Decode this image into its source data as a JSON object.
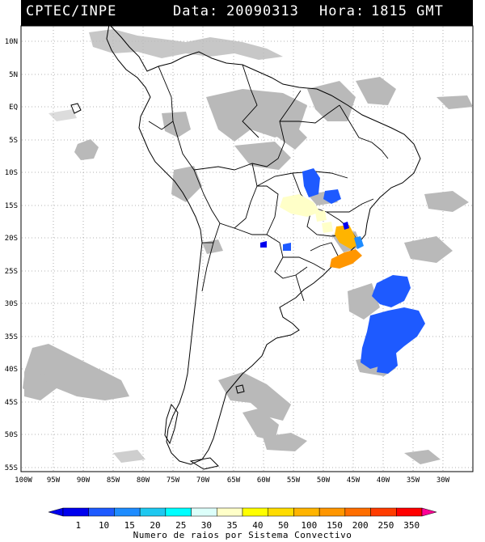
{
  "header": {
    "source": "CPTEC/INPE",
    "date_label": "Data:",
    "date_value": "20090313",
    "hour_label": "Hora:",
    "hour_value": "1815 GMT"
  },
  "latitude_labels": [
    "10N",
    "5N",
    "EQ",
    "5S",
    "10S",
    "15S",
    "20S",
    "25S",
    "30S",
    "35S",
    "40S",
    "45S",
    "50S",
    "55S"
  ],
  "longitude_labels": [
    "100W",
    "95W",
    "90W",
    "85W",
    "80W",
    "75W",
    "70W",
    "65W",
    "60W",
    "55W",
    "50W",
    "45W",
    "40W",
    "35W",
    "30W"
  ],
  "legend": {
    "title": "Numero de raios por Sistema Convectivo",
    "bins": [
      {
        "label": "1",
        "color": "#0000ee"
      },
      {
        "label": "10",
        "color": "#1e5aff"
      },
      {
        "label": "15",
        "color": "#1e8cff"
      },
      {
        "label": "20",
        "color": "#1ec8f0"
      },
      {
        "label": "25",
        "color": "#00ffff"
      },
      {
        "label": "30",
        "color": "#dcfffa"
      },
      {
        "label": "35",
        "color": "#ffffc8"
      },
      {
        "label": "40",
        "color": "#ffff00"
      },
      {
        "label": "50",
        "color": "#ffdc00"
      },
      {
        "label": "100",
        "color": "#ffb400"
      },
      {
        "label": "150",
        "color": "#ff9600"
      },
      {
        "label": "200",
        "color": "#ff6e00"
      },
      {
        "label": "250",
        "color": "#ff3c00"
      },
      {
        "label": "350",
        "color": "#ff0000"
      }
    ],
    "end_color": "#ff0096"
  },
  "colors": {
    "cloud": "#b9b9b9",
    "coast": "#000000",
    "grid": "#9a9a9a"
  }
}
